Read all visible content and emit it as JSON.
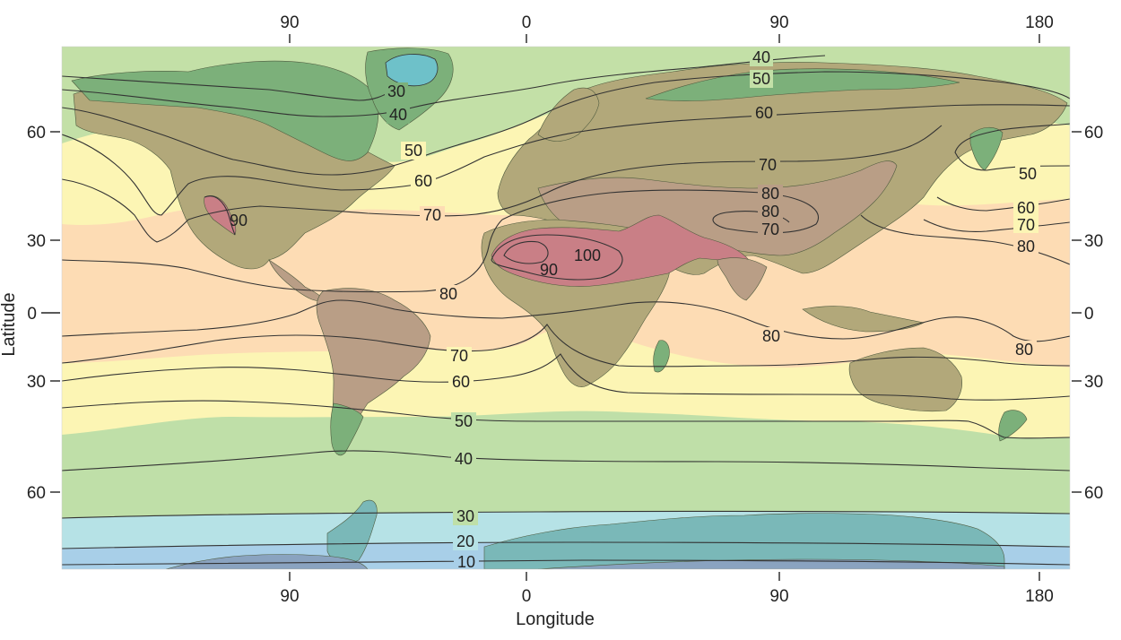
{
  "map": {
    "x_axis_title": "Longitude",
    "y_axis_title": "Latitude",
    "top_ticks": [
      "90",
      "0",
      "90",
      "180"
    ],
    "bottom_ticks": [
      "90",
      "0",
      "90",
      "180"
    ],
    "left_ticks": [
      "60",
      "30",
      "0",
      "30",
      "60"
    ],
    "right_ticks": [
      "60",
      "30",
      "0",
      "30",
      "60"
    ],
    "band_colors": {
      "lt10": "#a8cfe8",
      "10_20": "#bce4ec",
      "20_30": "#b6e2e6",
      "30_40": "#bfdfa8",
      "40_50": "#c3e0a7",
      "50_70": "#fcf5b4",
      "70_90": "#fddcb4",
      "ice_cap": "#6ec1c9",
      "land_low": "#7cb07a",
      "land_mid": "#b2a87a",
      "land_high": "#b99e86",
      "land_hot": "#c97f86"
    },
    "isoline_labels": [
      "40",
      "50",
      "30",
      "40",
      "60",
      "50",
      "60",
      "70",
      "70",
      "80",
      "80",
      "70",
      "90",
      "100",
      "90",
      "80",
      "80",
      "80",
      "70",
      "60",
      "50",
      "40",
      "30",
      "20",
      "10",
      "50",
      "60",
      "70",
      "80"
    ]
  }
}
